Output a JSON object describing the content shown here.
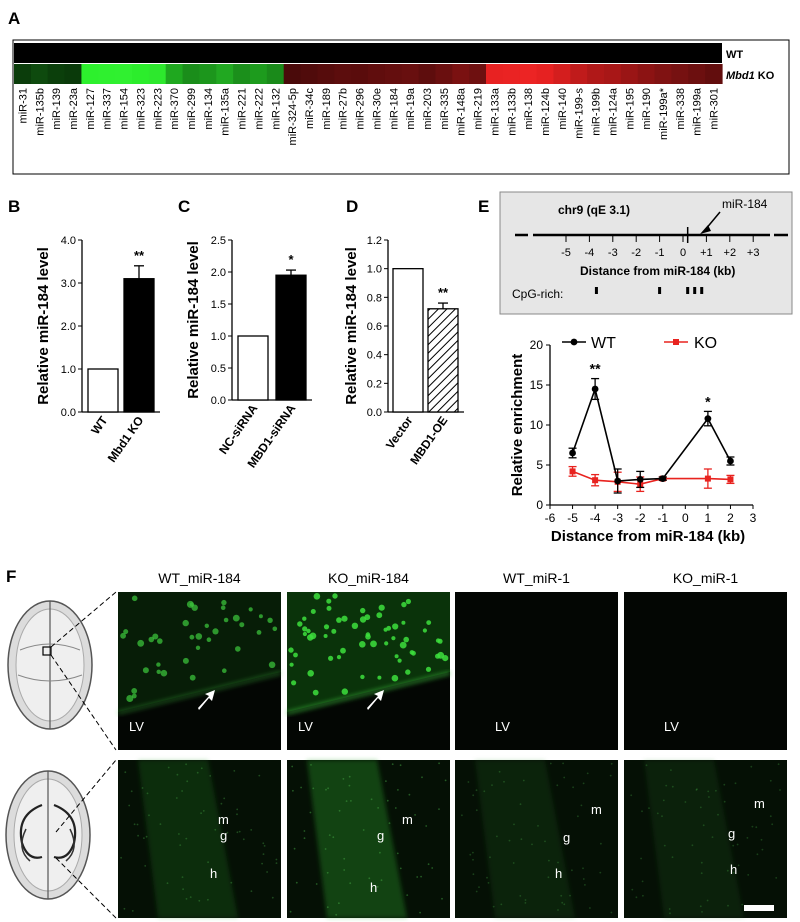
{
  "panels": {
    "A": "A",
    "B": "B",
    "C": "C",
    "D": "D",
    "E": "E",
    "F": "F"
  },
  "heatmap": {
    "row_wt": "WT",
    "row_ko_gene": "Mbd1",
    "row_ko_suffix": " KO",
    "mirnas": [
      "miR-31",
      "miR-135b",
      "miR-139",
      "miR-23a",
      "miR-127",
      "miR-337",
      "miR-154",
      "miR-323",
      "miR-223",
      "miR-370",
      "miR-299",
      "miR-134",
      "miR-135a",
      "miR-221",
      "miR-222",
      "miR-132",
      "miR-324-5p",
      "miR-34c",
      "miR-189",
      "miR-27b",
      "miR-296",
      "miR-30e",
      "miR-184",
      "miR-19a",
      "miR-203",
      "miR-335",
      "miR-148a",
      "miR-219",
      "miR-133a",
      "miR-133b",
      "miR-138",
      "miR-124b",
      "miR-140",
      "miR-199-s",
      "miR-199b",
      "miR-124a",
      "miR-195",
      "miR-190",
      "miR-199a*",
      "miR-338",
      "miR-199a",
      "miR-301"
    ],
    "wt_color": "#000000",
    "ko_colors": [
      "#0b3d0b",
      "#0e4a0e",
      "#0b3f0b",
      "#0a3a0a",
      "#2df02d",
      "#2ff02f",
      "#30f030",
      "#2ced2c",
      "#2de82d",
      "#1fa81f",
      "#1a8d1a",
      "#1c961c",
      "#21a821",
      "#1b8f1b",
      "#1d9b1d",
      "#1a8a1a",
      "#4a0a0a",
      "#500b0b",
      "#560c0c",
      "#5c0d0d",
      "#5a0c0c",
      "#600d0d",
      "#640e0e",
      "#680f0f",
      "#5e0d0d",
      "#6a0f0f",
      "#7a1111",
      "#6e1010",
      "#e82222",
      "#ea2323",
      "#ec2424",
      "#e62121",
      "#d41e1e",
      "#c01b1b",
      "#b01818",
      "#a81717",
      "#9a1515",
      "#8c1313",
      "#801212",
      "#761111",
      "#6c0f0f",
      "#620d0d"
    ]
  },
  "bar_charts": [
    {
      "type": "bar",
      "ylabel": "Relative miR-184 level",
      "categories": [
        "WT",
        "Mbd1 KO"
      ],
      "values": [
        1.0,
        3.1
      ],
      "errors": [
        0,
        0.3
      ],
      "fills": [
        "white",
        "black"
      ],
      "significance": [
        "",
        "**"
      ],
      "ylim": [
        0,
        4.0
      ],
      "yticks": [
        "0.0",
        "1.0",
        "2.0",
        "3.0",
        "4.0"
      ]
    },
    {
      "type": "bar",
      "ylabel": "Relative miR-184 level",
      "categories": [
        "NC-siRNA",
        "MBD1-siRNA"
      ],
      "values": [
        1.0,
        1.95
      ],
      "errors": [
        0,
        0.08
      ],
      "fills": [
        "white",
        "black"
      ],
      "significance": [
        "",
        "*"
      ],
      "ylim": [
        0,
        2.5
      ],
      "yticks": [
        "0.0",
        "0.5",
        "1.0",
        "1.5",
        "2.0",
        "2.5"
      ]
    },
    {
      "type": "bar",
      "ylabel": "Relative miR-184 level",
      "categories": [
        "Vector",
        "MBD1-OE"
      ],
      "values": [
        1.0,
        0.72
      ],
      "errors": [
        0,
        0.04
      ],
      "fills": [
        "white",
        "hatch"
      ],
      "significance": [
        "",
        "**"
      ],
      "ylim": [
        0,
        1.2
      ],
      "yticks": [
        "0.0",
        "0.2",
        "0.4",
        "0.6",
        "0.8",
        "1.0",
        "1.2"
      ]
    }
  ],
  "locus": {
    "chrom": "chr9 (qE 3.1)",
    "marker": "miR-184",
    "ticks": [
      "-5",
      "-4",
      "-3",
      "-2",
      "-1",
      "0",
      "+1",
      "+2",
      "+3"
    ],
    "xlabel": "Distance from miR-184 (kb)",
    "cpg_label": "CpG-rich:",
    "cpg_positions_kb": [
      -3.7,
      -1.0,
      0.2,
      0.5,
      0.8
    ]
  },
  "chart_data": {
    "type": "line",
    "ylabel": "Relative enrichment",
    "xlabel": "Distance from miR-184 (kb)",
    "xlim": [
      -6,
      3
    ],
    "ylim": [
      0,
      20
    ],
    "xticks": [
      "-6",
      "-5",
      "-4",
      "-3",
      "-2",
      "-1",
      "0",
      "1",
      "2",
      "3"
    ],
    "yticks": [
      "0",
      "5",
      "10",
      "15",
      "20"
    ],
    "x": [
      -5,
      -4,
      -3,
      -2,
      -1,
      1,
      2
    ],
    "series": [
      {
        "name": "WT",
        "color": "#000000",
        "marker": "circle",
        "values": [
          6.5,
          14.5,
          3.0,
          3.2,
          3.3,
          10.8,
          5.5
        ],
        "errors": [
          0.6,
          1.3,
          1.5,
          1.0,
          0.2,
          0.9,
          0.5
        ]
      },
      {
        "name": "KO",
        "color": "#e8231f",
        "marker": "square",
        "values": [
          4.2,
          3.1,
          2.9,
          2.6,
          3.3,
          3.3,
          3.2
        ],
        "errors": [
          0.6,
          0.7,
          1.2,
          0.9,
          0.2,
          1.2,
          0.5
        ]
      }
    ],
    "annotations": [
      {
        "x": -4,
        "label": "**"
      },
      {
        "x": 1,
        "label": "*"
      }
    ]
  },
  "micrographs": {
    "column_titles": [
      "WT_miR-184",
      "KO_miR-184",
      "WT_miR-1",
      "KO_miR-1"
    ],
    "row1_label": "LV",
    "row2_labels": {
      "m": "m",
      "g": "g",
      "h": "h"
    }
  },
  "colors": {
    "wt": "#000000",
    "ko": "#e8231f",
    "heatmap_bg": "#000000",
    "inset_bg": "#e6e6e6"
  }
}
